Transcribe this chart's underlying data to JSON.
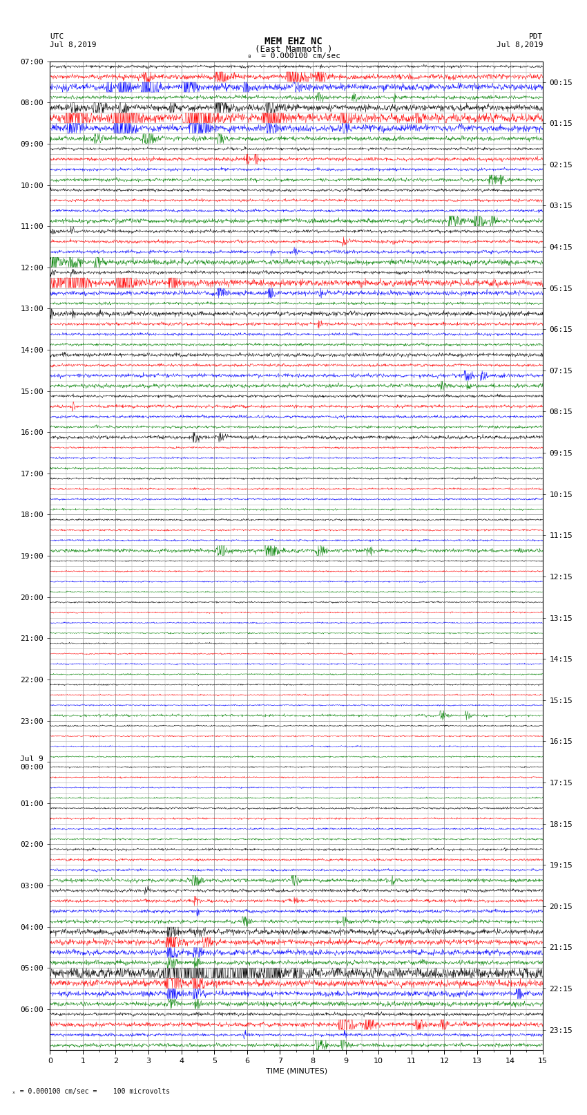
{
  "title_line1": "MEM EHZ NC",
  "title_line2": "(East Mammoth )",
  "scale_text": "= 0.000100 cm/sec",
  "utc_label": "UTC",
  "utc_date": "Jul 8,2019",
  "pdt_label": "PDT",
  "pdt_date": "Jul 8,2019",
  "xlabel": "TIME (MINUTES)",
  "footer_text": "= 0.000100 cm/sec =    100 microvolts",
  "footer_scale": "x",
  "ytick_left": [
    "07:00",
    "08:00",
    "09:00",
    "10:00",
    "11:00",
    "12:00",
    "13:00",
    "14:00",
    "15:00",
    "16:00",
    "17:00",
    "18:00",
    "19:00",
    "20:00",
    "21:00",
    "22:00",
    "23:00",
    "Jul 9\n00:00",
    "01:00",
    "02:00",
    "03:00",
    "04:00",
    "05:00",
    "06:00"
  ],
  "ytick_right": [
    "00:15",
    "01:15",
    "02:15",
    "03:15",
    "04:15",
    "05:15",
    "06:15",
    "07:15",
    "08:15",
    "09:15",
    "10:15",
    "11:15",
    "12:15",
    "13:15",
    "14:15",
    "15:15",
    "16:15",
    "17:15",
    "18:15",
    "19:15",
    "20:15",
    "21:15",
    "22:15",
    "23:15"
  ],
  "num_hours": 24,
  "traces_per_hour": 4,
  "minutes": 15,
  "bg_color": "#ffffff",
  "grid_color": "#aaaaaa",
  "trace_colors": [
    "black",
    "red",
    "blue",
    "green"
  ],
  "title_fontsize": 10,
  "label_fontsize": 8,
  "tick_fontsize": 8
}
